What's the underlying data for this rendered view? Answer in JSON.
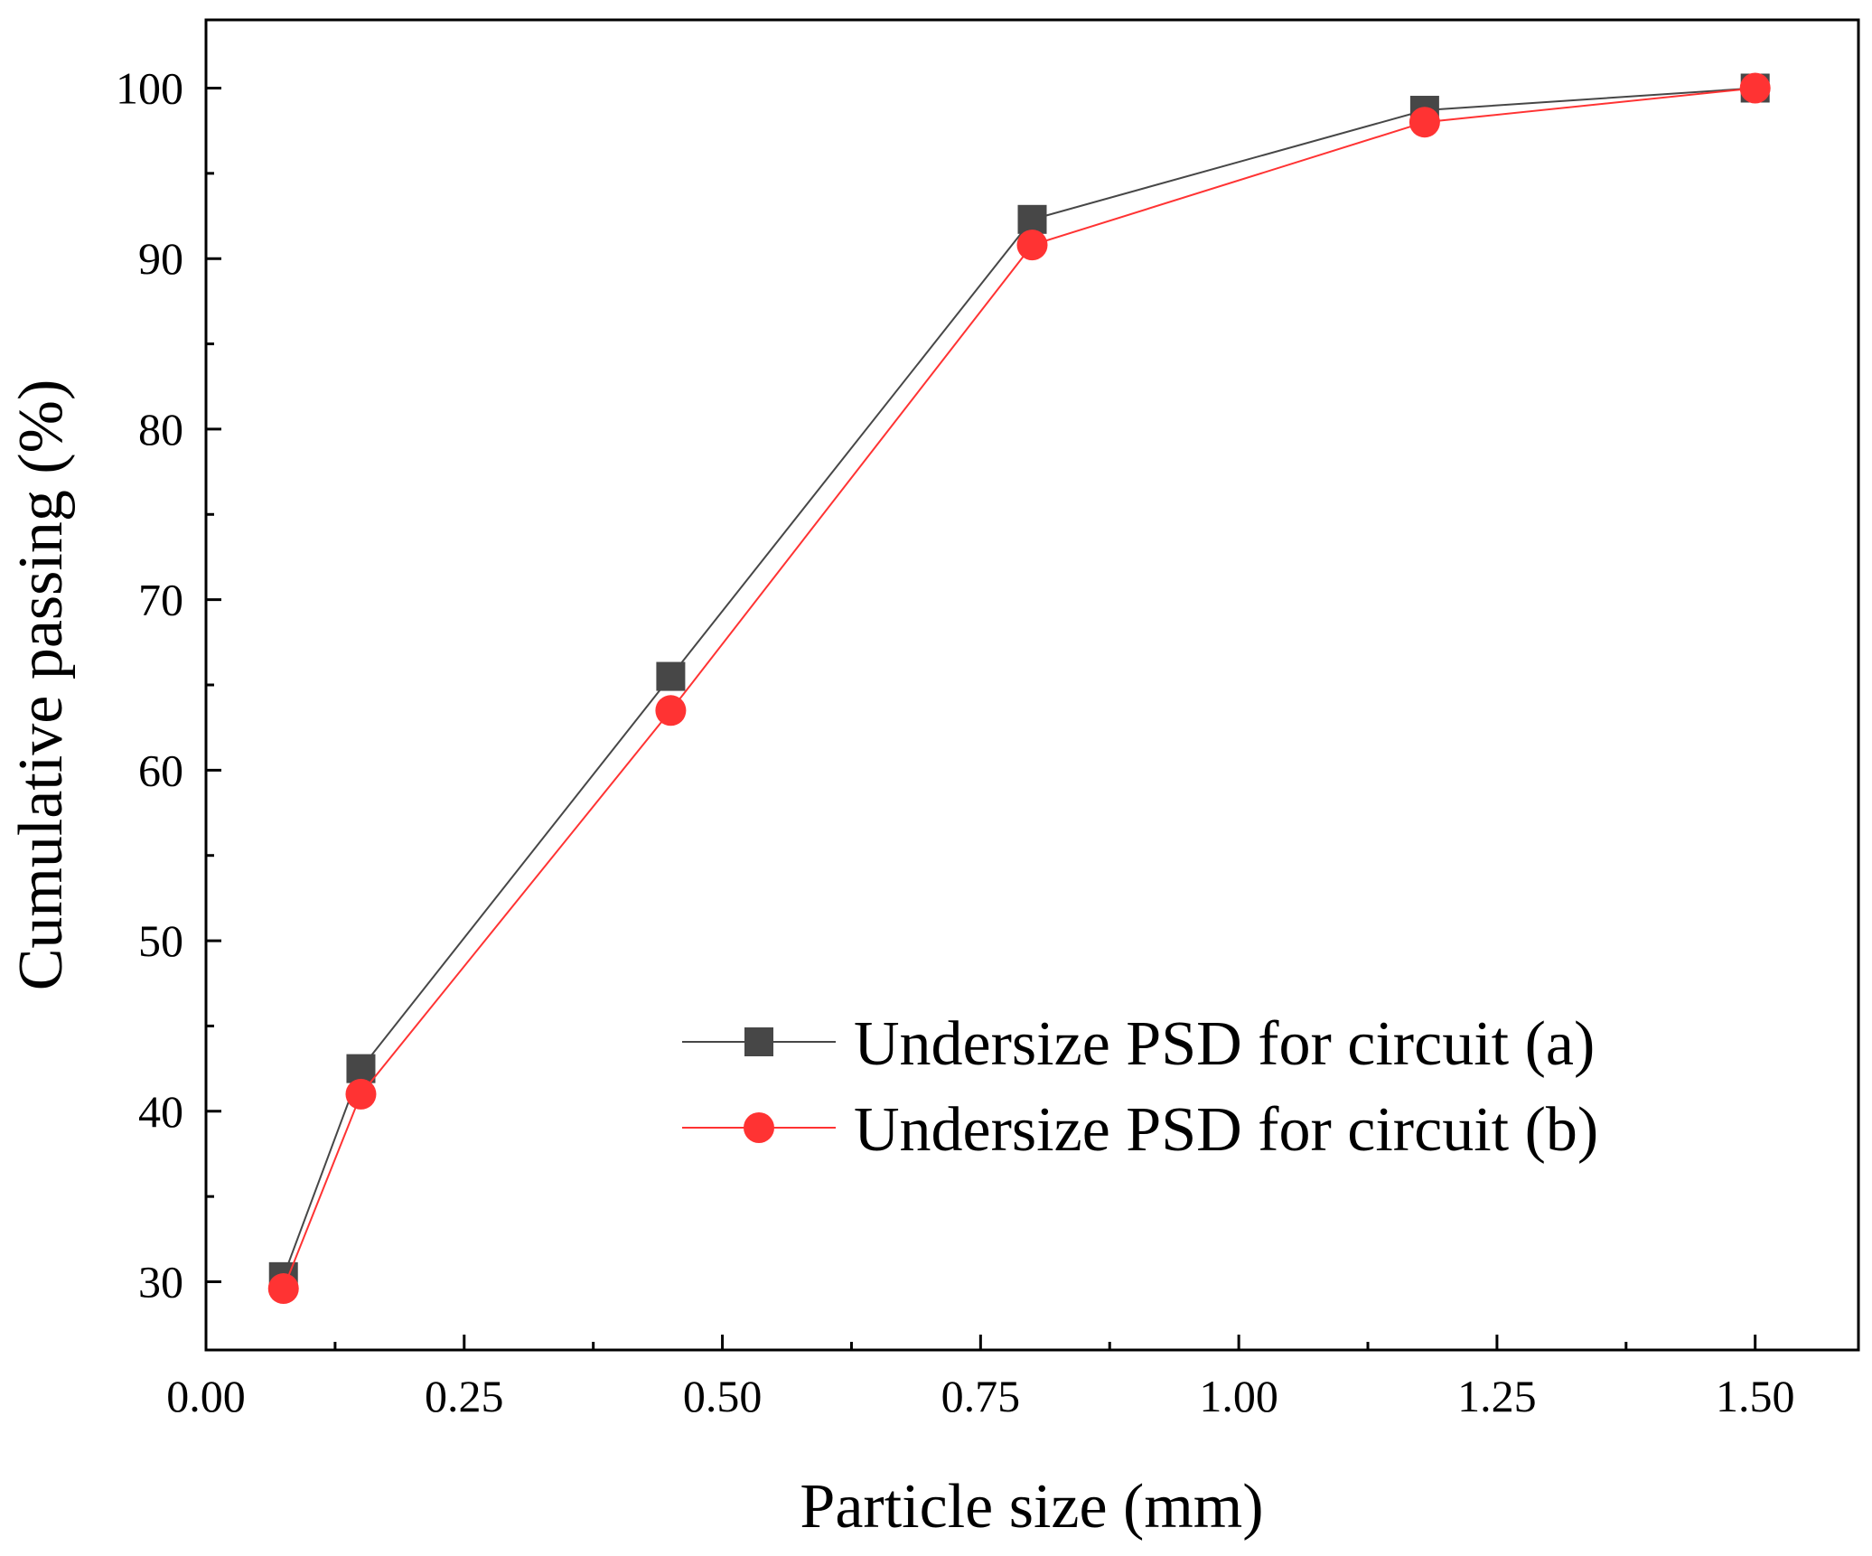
{
  "chart_data": {
    "type": "line",
    "xlabel": "Particle size (mm)",
    "ylabel": "Cumulative passing (%)",
    "xlim": [
      0.0,
      1.6
    ],
    "ylim": [
      26,
      104
    ],
    "xticks": [
      0.0,
      0.25,
      0.5,
      0.75,
      1.0,
      1.25,
      1.5
    ],
    "xtick_labels": [
      "0.00",
      "0.25",
      "0.50",
      "0.75",
      "1.00",
      "1.25",
      "1.50"
    ],
    "yticks": [
      30,
      40,
      50,
      60,
      70,
      80,
      90,
      100
    ],
    "ytick_labels": [
      "30",
      "40",
      "50",
      "60",
      "70",
      "80",
      "90",
      "100"
    ],
    "grid": false,
    "legend_position": "bottom-right",
    "x": [
      0.075,
      0.15,
      0.45,
      0.8,
      1.18,
      1.5
    ],
    "series": [
      {
        "name": "Undersize PSD for circuit (a)",
        "marker": "square",
        "color": "#474747",
        "values": [
          30.3,
          42.5,
          65.5,
          92.3,
          98.7,
          100.0
        ]
      },
      {
        "name": "Undersize PSD for circuit (b)",
        "marker": "circle",
        "color": "#ff3333",
        "values": [
          29.6,
          41.0,
          63.5,
          90.8,
          98.0,
          100.0
        ]
      }
    ]
  }
}
